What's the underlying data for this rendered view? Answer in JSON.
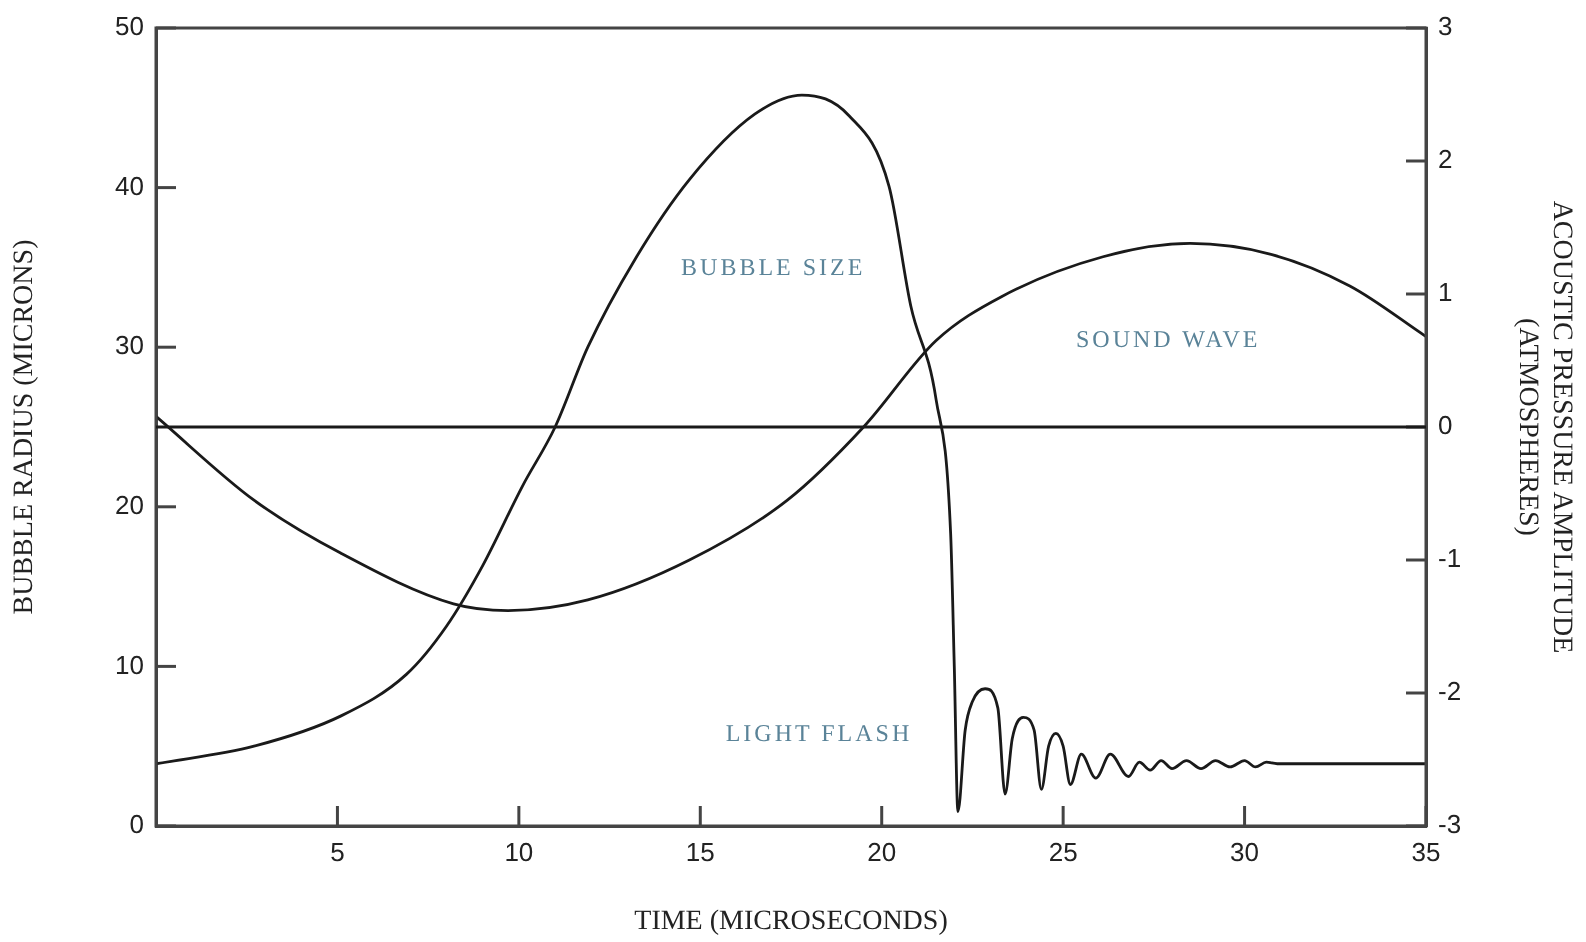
{
  "chart_data": {
    "type": "line",
    "xlabel": "TIME (MICROSECONDS)",
    "ylabel": "BUBBLE RADIUS (MICRONS)",
    "y2label": "ACOUSTIC PRESSURE AMPLITUDE\n(ATMOSPHERES)",
    "xlim": [
      0,
      35
    ],
    "xticks": [
      5,
      10,
      15,
      20,
      25,
      30,
      35
    ],
    "ylim": [
      0,
      50
    ],
    "yticks": [
      0,
      10,
      20,
      30,
      40,
      50
    ],
    "y2lim": [
      -3,
      3
    ],
    "y2ticks": [
      -3,
      -2,
      -1,
      0,
      1,
      2,
      3
    ],
    "grid": false,
    "legend": false,
    "marker": "none",
    "line_style": "solid",
    "series": [
      {
        "color": "#1a1a1a",
        "x": [
          0,
          2.7,
          5.1,
          6.9,
          8.0,
          9.0,
          10.1,
          11.0,
          11.9,
          13.2,
          14.7,
          16.5,
          17.8,
          19.1,
          20.2,
          20.8,
          21.5,
          21.9,
          22.0,
          22.1,
          22.3,
          22.5,
          22.85,
          23.2,
          23.4,
          23.6,
          23.9,
          24.2,
          24.4,
          24.6,
          24.8,
          25.0,
          25.2,
          25.5,
          25.9,
          26.3,
          26.8,
          27.1,
          27.4,
          27.7,
          28.0,
          28.4,
          28.8,
          29.2,
          29.6,
          30.0,
          30.3,
          30.6,
          30.9,
          35
        ],
        "values": [
          3.9,
          5.0,
          6.9,
          9.5,
          12.5,
          16.3,
          21.3,
          25.0,
          30.0,
          35.5,
          40.5,
          44.6,
          45.8,
          44.5,
          40.1,
          32.6,
          26.7,
          18.3,
          10.0,
          0.9,
          6.0,
          7.8,
          8.6,
          7.4,
          2.0,
          5.5,
          6.8,
          6.0,
          2.3,
          5.0,
          5.8,
          5.0,
          2.6,
          4.5,
          3.0,
          4.5,
          3.1,
          4.0,
          3.5,
          4.1,
          3.6,
          4.1,
          3.6,
          4.1,
          3.7,
          4.1,
          3.7,
          4.0,
          3.9,
          3.9
        ]
      },
      {
        "color": "#1a1a1a",
        "axis": "y2",
        "x": [
          0,
          2.7,
          5.1,
          8.2,
          9.7,
          11.9,
          14.7,
          17.4,
          19.5,
          21.5,
          23.3,
          26.1,
          28.5,
          30.7,
          32.9,
          35
        ],
        "values": [
          0.08,
          -0.55,
          -0.95,
          -1.33,
          -1.38,
          -1.3,
          -1.0,
          -0.55,
          0,
          0.65,
          0.98,
          1.28,
          1.38,
          1.3,
          1.06,
          0.68
        ]
      }
    ],
    "ref_lines": [
      {
        "axis": "y2",
        "value": 0,
        "color": "#1a1a1a"
      }
    ],
    "annotations": [
      "BUBBLE SIZE",
      "SOUND WAVE",
      "LIGHT FLASH"
    ]
  }
}
